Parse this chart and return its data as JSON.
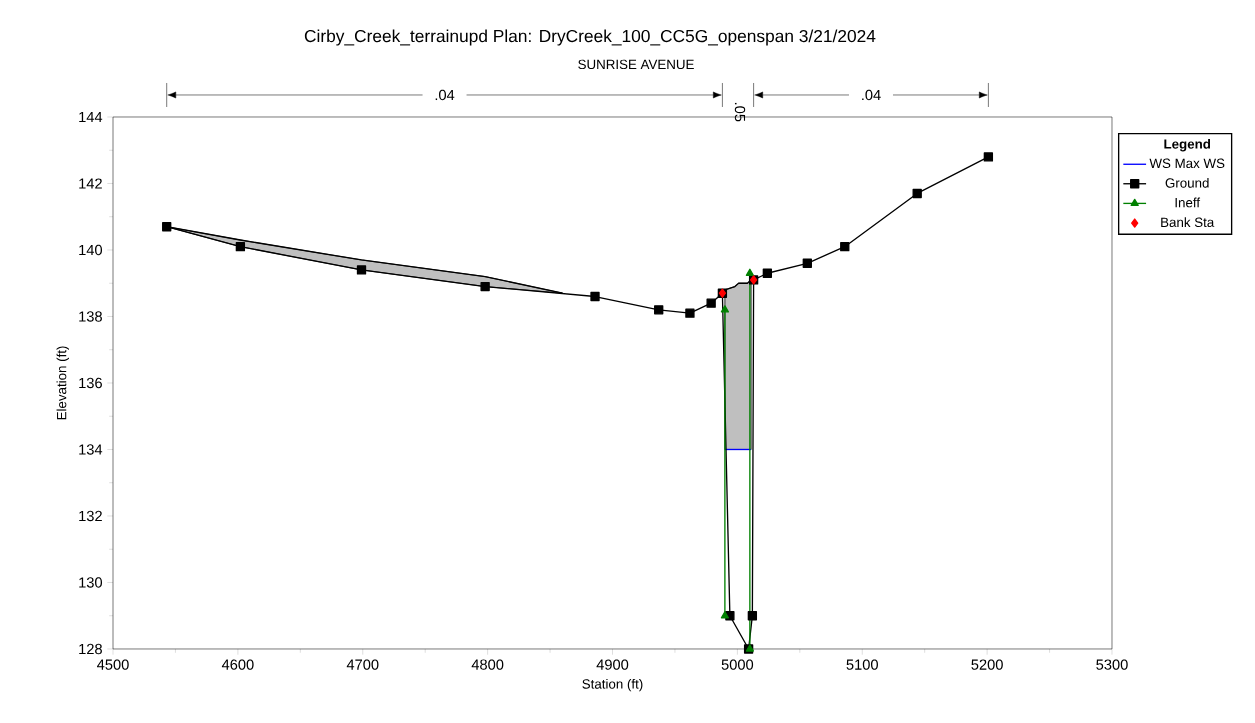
{
  "chart_data": {
    "type": "line",
    "title": "Cirby_Creek_terrainupd      Plan: DryCreek_100_CC5G_openspan     3/21/2024",
    "subtitle": "SUNRISE AVENUE",
    "xlabel": "Station (ft)",
    "ylabel": "Elevation (ft)",
    "legend_title": "Legend",
    "legend": "right",
    "annotations": [
      ".04",
      ".05",
      ".04"
    ],
    "xlim": [
      4500,
      5300
    ],
    "xticks": [
      4500,
      4600,
      4700,
      4800,
      4900,
      5000,
      5100,
      5200,
      5300
    ],
    "ylim": [
      128,
      144
    ],
    "yticks": [
      128,
      130,
      132,
      134,
      136,
      138,
      140,
      142,
      144
    ],
    "series": [
      {
        "type": "line",
        "color": "#000000",
        "marker": "none",
        "x": [
          4543,
          4602,
          4699,
          4798,
          4860
        ],
        "values": [
          140.7,
          140.3,
          139.7,
          139.2,
          138.7
        ],
        "lower": [
          140.7,
          140.1,
          139.4,
          138.9,
          138.7
        ],
        "upper": [
          140.7,
          140.3,
          139.7,
          139.2,
          138.7
        ]
      },
      {
        "type": "line",
        "color": "#000000",
        "marker": "none",
        "x": [
          4990,
          4998,
          5001,
          5008,
          5011
        ],
        "values": [
          138.8,
          138.9,
          139.0,
          139.0,
          139.1
        ],
        "lower": [
          134.0,
          134.0,
          134.0,
          134.0,
          134.0
        ],
        "upper": [
          138.8,
          138.9,
          139.0,
          139.0,
          139.1
        ]
      },
      {
        "name": "WS Max WS",
        "type": "line",
        "color": "#0000ff",
        "marker": "none",
        "x": [
          4990,
          5011
        ],
        "values": [
          134.0,
          134.0
        ]
      },
      {
        "name": "Ground",
        "color": "#000000",
        "marker": "square",
        "x": [
          4543,
          4602,
          4699,
          4798,
          4886,
          4937,
          4962,
          4979,
          4988,
          4994,
          5009,
          5012,
          5013,
          5024,
          5056,
          5086,
          5144,
          5201
        ],
        "values": [
          140.7,
          140.1,
          139.4,
          138.9,
          138.6,
          138.2,
          138.1,
          138.4,
          138.7,
          129.0,
          128.0,
          129.0,
          139.1,
          139.3,
          139.6,
          140.1,
          141.7,
          142.8
        ]
      },
      {
        "name": "Ineff",
        "type": "line",
        "color": "#008000",
        "marker": "triangle",
        "x": [
          4990,
          4990,
          5000,
          5010,
          5010
        ],
        "values": [
          129.0,
          138.2,
          null,
          128.0,
          139.3
        ]
      },
      {
        "name": "Bank Sta",
        "type": "scatter",
        "color": "#ff0000",
        "marker": "diamond",
        "x": [
          4988,
          5013
        ],
        "values": [
          138.7,
          139.1
        ]
      }
    ]
  }
}
